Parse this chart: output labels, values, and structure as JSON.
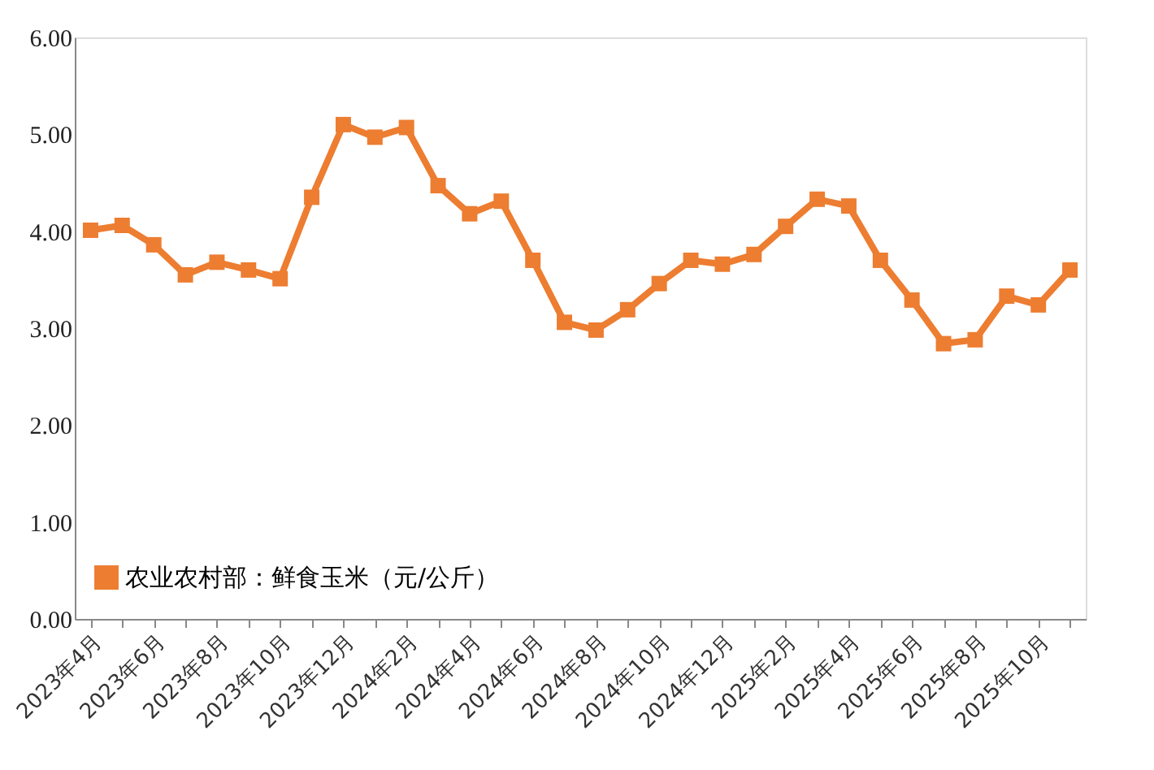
{
  "chart_data": {
    "type": "line",
    "categories": [
      "2023年4月",
      null,
      "2023年6月",
      null,
      "2023年8月",
      null,
      "2023年10月",
      null,
      "2023年12月",
      null,
      "2024年2月",
      null,
      "2024年4月",
      null,
      "2024年6月",
      null,
      "2024年8月",
      null,
      "2024年10月",
      null,
      "2024年12月",
      null,
      "2025年2月",
      null,
      "2025年4月",
      null,
      "2025年6月",
      null,
      "2025年8月",
      null,
      "2025年10月",
      null
    ],
    "series": [
      {
        "name": "农业农村部：鲜食玉米（元/公斤）",
        "color": "#ed7d31",
        "values": [
          4.01,
          4.06,
          3.86,
          3.55,
          3.68,
          3.6,
          3.51,
          4.35,
          5.1,
          4.97,
          5.07,
          4.47,
          4.18,
          4.31,
          3.7,
          3.06,
          2.98,
          3.19,
          3.46,
          3.7,
          3.66,
          3.76,
          4.05,
          4.33,
          4.26,
          3.7,
          3.29,
          2.84,
          2.88,
          3.33,
          3.24,
          3.6
        ]
      }
    ],
    "ylim": [
      0,
      6
    ],
    "yticks": [
      {
        "value": 0,
        "label": "0.00"
      },
      {
        "value": 1,
        "label": "1.00"
      },
      {
        "value": 2,
        "label": "2.00"
      },
      {
        "value": 3,
        "label": "3.00"
      },
      {
        "value": 4,
        "label": "4.00"
      },
      {
        "value": 5,
        "label": "5.00"
      },
      {
        "value": 6,
        "label": "6.00"
      }
    ],
    "grid": false,
    "legend": "bottom left",
    "marker": "square",
    "line_style": "solid"
  }
}
